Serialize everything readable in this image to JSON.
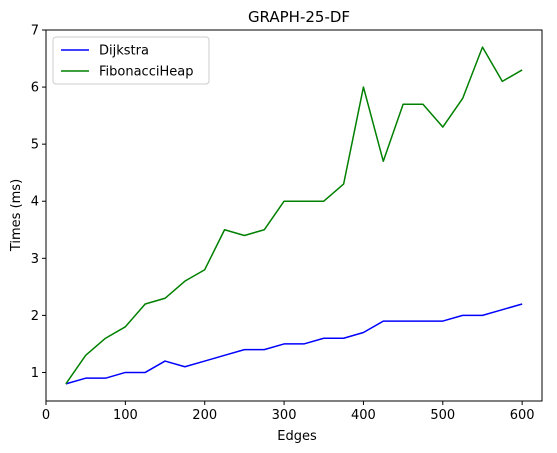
{
  "chart_data": {
    "type": "line",
    "title": "GRAPH-25-DF",
    "xlabel": "Edges",
    "ylabel": "Times (ms)",
    "xlim": [
      0,
      625
    ],
    "ylim": [
      0.5,
      7
    ],
    "xticks": [
      0,
      100,
      200,
      300,
      400,
      500,
      600
    ],
    "yticks": [
      1,
      2,
      3,
      4,
      5,
      6,
      7
    ],
    "grid": false,
    "legend_position": "top-left",
    "x": [
      25,
      50,
      75,
      100,
      125,
      150,
      175,
      200,
      225,
      250,
      275,
      300,
      325,
      350,
      375,
      400,
      425,
      450,
      475,
      500,
      525,
      550,
      575,
      600
    ],
    "series": [
      {
        "name": "Dijkstra",
        "color": "#0000ff",
        "values": [
          0.8,
          0.9,
          0.9,
          1.0,
          1.0,
          1.2,
          1.1,
          1.2,
          1.3,
          1.4,
          1.4,
          1.5,
          1.5,
          1.6,
          1.6,
          1.7,
          1.9,
          1.9,
          1.9,
          1.9,
          2.0,
          2.0,
          2.1,
          2.2
        ]
      },
      {
        "name": "FibonacciHeap",
        "color": "#008000",
        "values": [
          0.8,
          1.3,
          1.6,
          1.8,
          2.2,
          2.3,
          2.6,
          2.8,
          3.5,
          3.4,
          3.5,
          4.0,
          4.0,
          4.0,
          4.3,
          6.0,
          4.7,
          5.7,
          5.7,
          5.3,
          5.8,
          6.7,
          6.1,
          6.3
        ]
      }
    ]
  }
}
